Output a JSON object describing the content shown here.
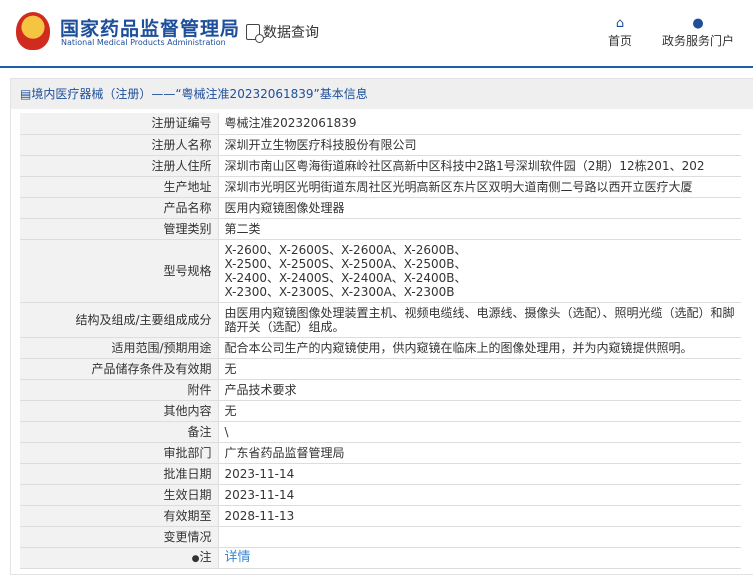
{
  "header": {
    "brand_cn": "国家药品监督管理局",
    "brand_en": "National Medical Products Administration",
    "data_query": "数据查询",
    "nav": [
      {
        "label": "首页",
        "icon": "home-icon"
      },
      {
        "label": "政务服务门户",
        "icon": "user-icon"
      }
    ]
  },
  "panel": {
    "title": "境内医疗器械（注册）——“粤械注准20232061839”基本信息"
  },
  "rows": [
    {
      "label": "注册证编号",
      "value": "粤械注准20232061839"
    },
    {
      "label": "注册人名称",
      "value": "深圳开立生物医疗科技股份有限公司"
    },
    {
      "label": "注册人住所",
      "value": "深圳市南山区粤海街道麻岭社区高新中区科技中2路1号深圳软件园（2期）12栋201、202"
    },
    {
      "label": "生产地址",
      "value": "深圳市光明区光明街道东周社区光明高新区东片区双明大道南侧二号路以西开立医疗大厦"
    },
    {
      "label": "产品名称",
      "value": "医用内窥镜图像处理器"
    },
    {
      "label": "管理类别",
      "value": "第二类"
    },
    {
      "label": "型号规格",
      "lines": [
        "X-2600、X-2600S、X-2600A、X-2600B、",
        "X-2500、X-2500S、X-2500A、X-2500B、",
        "X-2400、X-2400S、X-2400A、X-2400B、",
        "X-2300、X-2300S、X-2300A、X-2300B"
      ]
    },
    {
      "label": "结构及组成/主要组成成分",
      "value": "由医用内窥镜图像处理装置主机、视频电缆线、电源线、摄像头（选配）、照明光缆（选配）和脚踏开关（选配）组成。"
    },
    {
      "label": "适用范围/预期用途",
      "value": "配合本公司生产的内窥镜使用，供内窥镜在临床上的图像处理用，并为内窥镜提供照明。"
    },
    {
      "label": "产品储存条件及有效期",
      "value": "无"
    },
    {
      "label": "附件",
      "value": "产品技术要求"
    },
    {
      "label": "其他内容",
      "value": "无"
    },
    {
      "label": "备注",
      "value": "\\"
    },
    {
      "label": "审批部门",
      "value": "广东省药品监督管理局"
    },
    {
      "label": "批准日期",
      "value": "2023-11-14"
    },
    {
      "label": "生效日期",
      "value": "2023-11-14"
    },
    {
      "label": "有效期至",
      "value": "2028-11-13"
    },
    {
      "label": "变更情况",
      "value": ""
    },
    {
      "label": "注",
      "link": "详情"
    }
  ]
}
